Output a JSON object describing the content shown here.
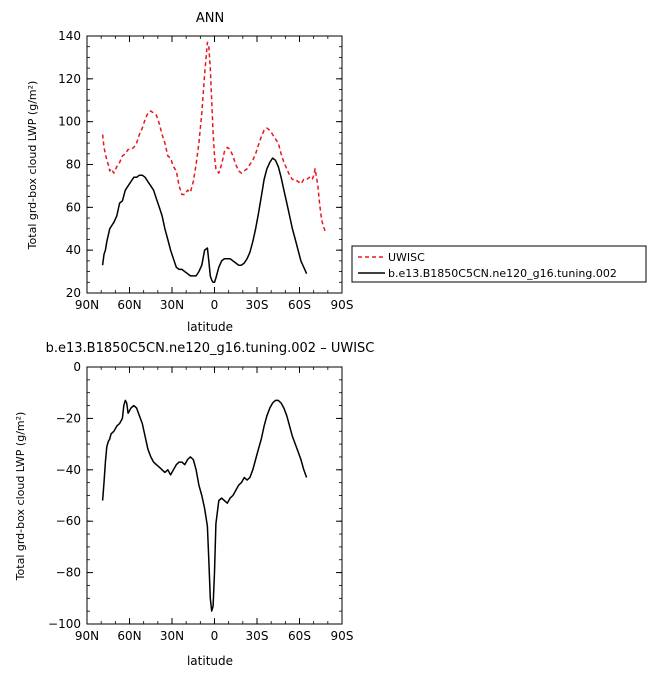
{
  "chart_data": [
    {
      "type": "line",
      "title": "ANN",
      "xlabel": "latitude",
      "ylabel": "Total grd-box cloud LWP (g/m²)",
      "xlim": [
        90,
        -90
      ],
      "ylim": [
        20,
        140
      ],
      "x_ticks": [
        {
          "value": 90,
          "label": "90N"
        },
        {
          "value": 60,
          "label": "60N"
        },
        {
          "value": 30,
          "label": "30N"
        },
        {
          "value": 0,
          "label": "0"
        },
        {
          "value": -30,
          "label": "30S"
        },
        {
          "value": -60,
          "label": "60S"
        },
        {
          "value": -90,
          "label": "90S"
        }
      ],
      "y_ticks": [
        20,
        40,
        60,
        80,
        100,
        120,
        140
      ],
      "legend_position": "right",
      "series": [
        {
          "name": "UWISC",
          "color": "#e8161b",
          "dash": "dashed",
          "x": [
            79,
            78,
            77,
            76,
            75,
            74,
            73,
            71,
            69,
            67,
            65,
            63,
            61,
            59,
            57,
            55,
            53,
            51,
            49,
            47,
            45,
            43,
            41,
            39,
            37,
            35,
            33,
            31,
            29,
            27,
            25,
            23,
            21,
            19,
            17,
            15,
            13,
            11,
            9,
            7,
            5,
            4,
            3,
            2,
            1,
            0,
            -1,
            -3,
            -5,
            -7,
            -9,
            -11,
            -13,
            -15,
            -17,
            -19,
            -21,
            -23,
            -25,
            -27,
            -29,
            -31,
            -33,
            -35,
            -37,
            -39,
            -41,
            -43,
            -45,
            -47,
            -49,
            -51,
            -53,
            -55,
            -57,
            -59,
            -61,
            -63,
            -65,
            -67,
            -69,
            -70,
            -71,
            -72,
            -73,
            -74,
            -75,
            -76,
            -77,
            -78
          ],
          "y": [
            94,
            88,
            85,
            82,
            80,
            77,
            78,
            76,
            79,
            81,
            84,
            85,
            87,
            87,
            88,
            90,
            94,
            97,
            101,
            104,
            105,
            104,
            103,
            99,
            94,
            90,
            84,
            83,
            79,
            77,
            70,
            66,
            66,
            68,
            67,
            72,
            80,
            90,
            104,
            122,
            137,
            135,
            125,
            110,
            95,
            84,
            78,
            76,
            80,
            86,
            88,
            87,
            84,
            80,
            77,
            76,
            77,
            78,
            80,
            82,
            85,
            89,
            93,
            96,
            97,
            96,
            94,
            92,
            90,
            85,
            81,
            78,
            75,
            73,
            73,
            72,
            71,
            73,
            73,
            74,
            73,
            75,
            78,
            74,
            70,
            63,
            57,
            53,
            51,
            49
          ],
          "ylim": [
            20,
            140
          ]
        },
        {
          "name": "b.e13.B1850C5CN.ne120_g16.tuning.002",
          "color": "#000000",
          "dash": "solid",
          "x": [
            79,
            78,
            77,
            76,
            75,
            74,
            73,
            71,
            69,
            67,
            65,
            63,
            61,
            59,
            57,
            55,
            53,
            51,
            49,
            47,
            45,
            43,
            41,
            39,
            37,
            35,
            33,
            31,
            29,
            27,
            25,
            23,
            21,
            19,
            17,
            15,
            13,
            11,
            9,
            7,
            5,
            4,
            3,
            2,
            1,
            0,
            -1,
            -3,
            -5,
            -7,
            -9,
            -11,
            -13,
            -15,
            -17,
            -19,
            -21,
            -23,
            -25,
            -27,
            -29,
            -31,
            -33,
            -35,
            -37,
            -39,
            -41,
            -43,
            -45,
            -47,
            -49,
            -51,
            -53,
            -55,
            -57,
            -59,
            -61,
            -63,
            -65
          ],
          "y": [
            33,
            38,
            40,
            44,
            47,
            50,
            51,
            53,
            56,
            62,
            63,
            68,
            70,
            72,
            74,
            74,
            75,
            75,
            74,
            72,
            70,
            68,
            64,
            60,
            56,
            50,
            45,
            40,
            36,
            32,
            31,
            31,
            30,
            29,
            28,
            28,
            28,
            30,
            33,
            40,
            41,
            35,
            28,
            26,
            25,
            25,
            27,
            32,
            35,
            36,
            36,
            36,
            35,
            34,
            33,
            33,
            34,
            36,
            39,
            44,
            50,
            57,
            65,
            73,
            78,
            81,
            83,
            82,
            79,
            74,
            68,
            62,
            56,
            50,
            45,
            40,
            35,
            32,
            29
          ]
        }
      ]
    },
    {
      "type": "line",
      "title": "b.e13.B1850C5CN.ne120_g16.tuning.002 – UWISC",
      "xlabel": "latitude",
      "ylabel": "Total grd-box cloud LWP (g/m²)",
      "xlim": [
        90,
        -90
      ],
      "ylim": [
        -100,
        0
      ],
      "x_ticks": [
        {
          "value": 90,
          "label": "90N"
        },
        {
          "value": 60,
          "label": "60N"
        },
        {
          "value": 30,
          "label": "30N"
        },
        {
          "value": 0,
          "label": "0"
        },
        {
          "value": -30,
          "label": "30S"
        },
        {
          "value": -60,
          "label": "60S"
        },
        {
          "value": -90,
          "label": "90S"
        }
      ],
      "y_ticks": [
        -100,
        -80,
        -60,
        -40,
        -20,
        0
      ],
      "series": [
        {
          "name": "",
          "color": "#000000",
          "dash": "solid",
          "x": [
            79,
            78,
            77,
            76,
            75,
            74,
            73,
            71,
            69,
            67,
            65,
            64,
            63,
            62,
            61,
            59,
            57,
            55,
            53,
            51,
            49,
            47,
            45,
            43,
            41,
            39,
            37,
            35,
            33,
            31,
            29,
            27,
            25,
            23,
            21,
            19,
            17,
            15,
            13,
            11,
            9,
            7,
            5,
            4,
            3,
            2,
            1,
            0,
            -1,
            -3,
            -5,
            -7,
            -9,
            -11,
            -13,
            -15,
            -17,
            -19,
            -21,
            -23,
            -25,
            -27,
            -29,
            -31,
            -33,
            -35,
            -37,
            -39,
            -41,
            -43,
            -45,
            -47,
            -49,
            -51,
            -53,
            -55,
            -57,
            -59,
            -61,
            -63,
            -65
          ],
          "y": [
            -52,
            -45,
            -37,
            -31,
            -29,
            -28,
            -26,
            -25,
            -23,
            -22,
            -20,
            -15,
            -13,
            -14,
            -18,
            -16,
            -15,
            -16,
            -19,
            -22,
            -27,
            -32,
            -35,
            -37,
            -38,
            -39,
            -40,
            -41,
            -40,
            -42,
            -40,
            -38,
            -37,
            -37,
            -38,
            -36,
            -35,
            -36,
            -40,
            -46,
            -50,
            -55,
            -62,
            -75,
            -90,
            -95,
            -93,
            -80,
            -61,
            -52,
            -51,
            -52,
            -53,
            -51,
            -50,
            -48,
            -46,
            -45,
            -43,
            -44,
            -43,
            -40,
            -36,
            -32,
            -28,
            -23,
            -19,
            -16,
            -14,
            -13,
            -13,
            -14,
            -16,
            -19,
            -23,
            -27,
            -30,
            -33,
            -36,
            -40,
            -43
          ]
        }
      ]
    }
  ]
}
